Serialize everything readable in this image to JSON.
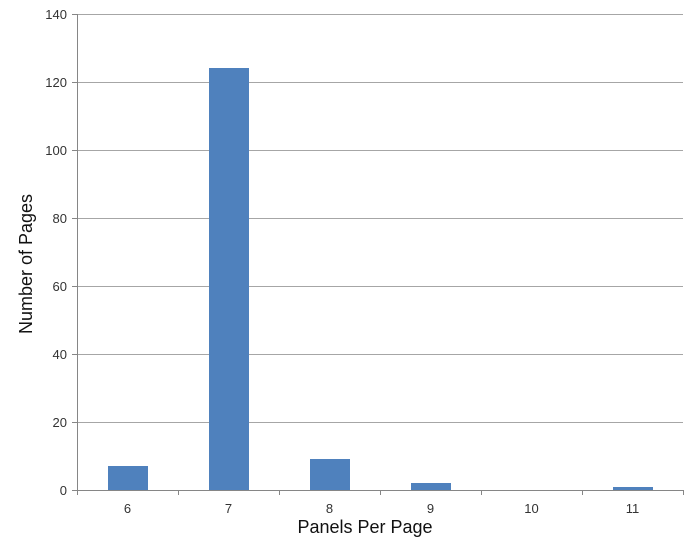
{
  "chart_data": {
    "type": "bar",
    "categories": [
      "6",
      "7",
      "8",
      "9",
      "10",
      "11"
    ],
    "values": [
      7,
      124,
      9,
      2,
      0,
      1
    ],
    "title": "",
    "xlabel": "Panels Per Page",
    "ylabel": "Number of Pages",
    "ylim": [
      0,
      140
    ],
    "yticks": [
      0,
      20,
      40,
      60,
      80,
      100,
      120,
      140
    ],
    "ytick_labels": [
      "0",
      "20",
      "40",
      "60",
      "80",
      "100",
      "120",
      "140"
    ],
    "grid": true,
    "legend": "none",
    "bar_color": "#4f81bd"
  }
}
